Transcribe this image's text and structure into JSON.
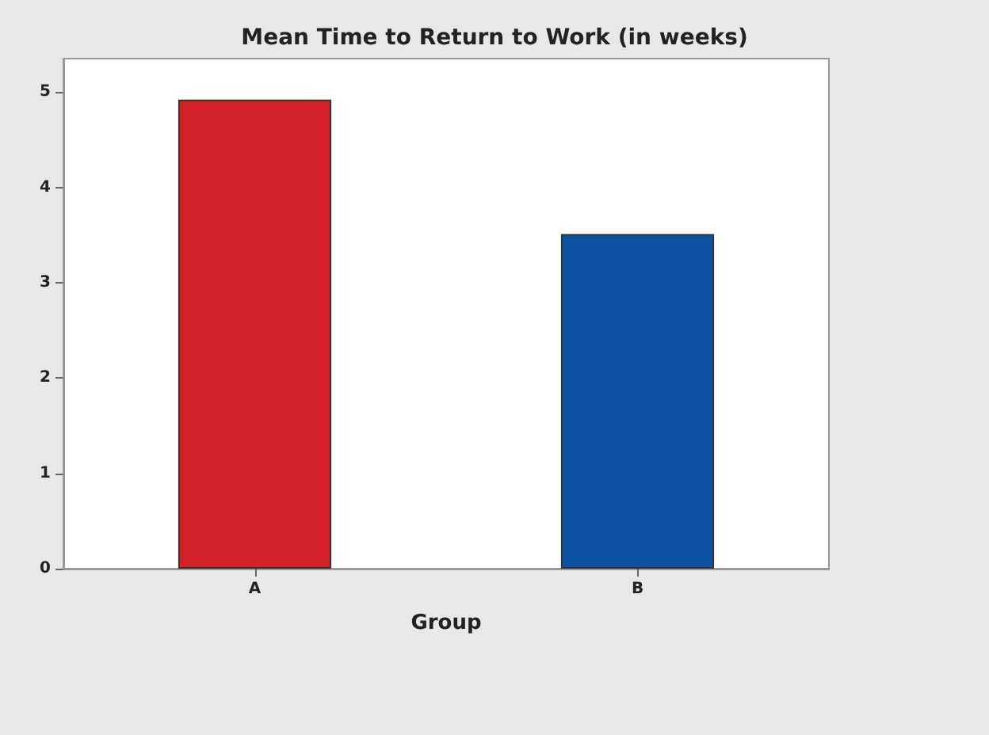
{
  "chart_data": {
    "type": "bar",
    "title": "Mean Time to Return to Work (in weeks)",
    "xlabel": "Group",
    "categories": [
      "A",
      "B"
    ],
    "values": [
      4.92,
      3.51
    ],
    "colors": [
      "#d42027",
      "#0d52a3"
    ],
    "ylim": [
      0,
      5.35
    ],
    "yticks": [
      0,
      1,
      2,
      3,
      4,
      5
    ],
    "grid": false
  }
}
